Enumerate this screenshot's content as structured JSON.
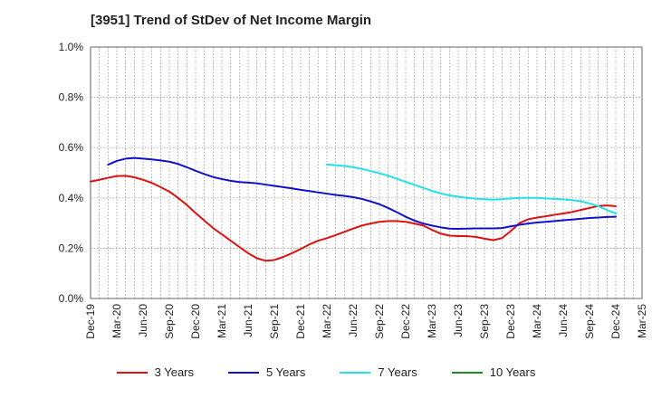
{
  "chart_data": {
    "type": "line",
    "title": "[3951]  Trend of StDev of Net Income Margin",
    "xlabel": "",
    "ylabel": "",
    "ylim": [
      0,
      1.0
    ],
    "y_ticks": [
      "0.0%",
      "0.2%",
      "0.4%",
      "0.6%",
      "0.8%",
      "1.0%"
    ],
    "x_ticks": [
      "Dec-19",
      "Mar-20",
      "Jun-20",
      "Sep-20",
      "Dec-20",
      "Mar-21",
      "Jun-21",
      "Sep-21",
      "Dec-21",
      "Mar-22",
      "Jun-22",
      "Sep-22",
      "Dec-22",
      "Mar-23",
      "Jun-23",
      "Sep-23",
      "Dec-23",
      "Mar-24",
      "Jun-24",
      "Sep-24",
      "Dec-24",
      "Mar-25"
    ],
    "grid": true,
    "legend_position": "bottom",
    "series": [
      {
        "name": "3 Years",
        "color": "#dd1111",
        "points": [
          [
            "Dec-19",
            0.465
          ],
          [
            "Jan-20",
            0.472
          ],
          [
            "Feb-20",
            0.48
          ],
          [
            "Mar-20",
            0.487
          ],
          [
            "Apr-20",
            0.488
          ],
          [
            "May-20",
            0.482
          ],
          [
            "Jun-20",
            0.472
          ],
          [
            "Jul-20",
            0.46
          ],
          [
            "Aug-20",
            0.443
          ],
          [
            "Sep-20",
            0.425
          ],
          [
            "Oct-20",
            0.4
          ],
          [
            "Nov-20",
            0.372
          ],
          [
            "Dec-20",
            0.34
          ],
          [
            "Jan-21",
            0.31
          ],
          [
            "Feb-21",
            0.28
          ],
          [
            "Mar-21",
            0.255
          ],
          [
            "Apr-21",
            0.23
          ],
          [
            "May-21",
            0.205
          ],
          [
            "Jun-21",
            0.18
          ],
          [
            "Jul-21",
            0.16
          ],
          [
            "Aug-21",
            0.15
          ],
          [
            "Sep-21",
            0.153
          ],
          [
            "Oct-21",
            0.165
          ],
          [
            "Nov-21",
            0.18
          ],
          [
            "Dec-21",
            0.197
          ],
          [
            "Jan-22",
            0.215
          ],
          [
            "Feb-22",
            0.23
          ],
          [
            "Mar-22",
            0.24
          ],
          [
            "Apr-22",
            0.252
          ],
          [
            "May-22",
            0.265
          ],
          [
            "Jun-22",
            0.278
          ],
          [
            "Jul-22",
            0.29
          ],
          [
            "Aug-22",
            0.298
          ],
          [
            "Sep-22",
            0.305
          ],
          [
            "Oct-22",
            0.308
          ],
          [
            "Nov-22",
            0.308
          ],
          [
            "Dec-22",
            0.305
          ],
          [
            "Jan-23",
            0.298
          ],
          [
            "Feb-23",
            0.29
          ],
          [
            "Mar-23",
            0.273
          ],
          [
            "Apr-23",
            0.258
          ],
          [
            "May-23",
            0.25
          ],
          [
            "Jun-23",
            0.248
          ],
          [
            "Jul-23",
            0.248
          ],
          [
            "Aug-23",
            0.245
          ],
          [
            "Sep-23",
            0.238
          ],
          [
            "Oct-23",
            0.232
          ],
          [
            "Nov-23",
            0.24
          ],
          [
            "Dec-23",
            0.268
          ],
          [
            "Jan-24",
            0.3
          ],
          [
            "Feb-24",
            0.315
          ],
          [
            "Mar-24",
            0.322
          ],
          [
            "Apr-24",
            0.327
          ],
          [
            "May-24",
            0.333
          ],
          [
            "Jun-24",
            0.338
          ],
          [
            "Jul-24",
            0.344
          ],
          [
            "Aug-24",
            0.352
          ],
          [
            "Sep-24",
            0.36
          ],
          [
            "Oct-24",
            0.368
          ],
          [
            "Nov-24",
            0.37
          ],
          [
            "Dec-24",
            0.367
          ]
        ]
      },
      {
        "name": "5 Years",
        "color": "#1111cc",
        "points": [
          [
            "Feb-20",
            0.532
          ],
          [
            "Mar-20",
            0.547
          ],
          [
            "Apr-20",
            0.556
          ],
          [
            "May-20",
            0.559
          ],
          [
            "Jun-20",
            0.556
          ],
          [
            "Jul-20",
            0.553
          ],
          [
            "Aug-20",
            0.549
          ],
          [
            "Sep-20",
            0.544
          ],
          [
            "Oct-20",
            0.535
          ],
          [
            "Nov-20",
            0.522
          ],
          [
            "Dec-20",
            0.508
          ],
          [
            "Jan-21",
            0.495
          ],
          [
            "Feb-21",
            0.483
          ],
          [
            "Mar-21",
            0.475
          ],
          [
            "Apr-21",
            0.468
          ],
          [
            "May-21",
            0.463
          ],
          [
            "Jun-21",
            0.461
          ],
          [
            "Jul-21",
            0.458
          ],
          [
            "Aug-21",
            0.453
          ],
          [
            "Sep-21",
            0.448
          ],
          [
            "Oct-21",
            0.443
          ],
          [
            "Nov-21",
            0.438
          ],
          [
            "Dec-21",
            0.432
          ],
          [
            "Jan-22",
            0.427
          ],
          [
            "Feb-22",
            0.422
          ],
          [
            "Mar-22",
            0.417
          ],
          [
            "Apr-22",
            0.412
          ],
          [
            "May-22",
            0.408
          ],
          [
            "Jun-22",
            0.403
          ],
          [
            "Jul-22",
            0.396
          ],
          [
            "Aug-22",
            0.386
          ],
          [
            "Sep-22",
            0.375
          ],
          [
            "Oct-22",
            0.36
          ],
          [
            "Nov-22",
            0.343
          ],
          [
            "Dec-22",
            0.325
          ],
          [
            "Jan-23",
            0.31
          ],
          [
            "Feb-23",
            0.298
          ],
          [
            "Mar-23",
            0.29
          ],
          [
            "Apr-23",
            0.283
          ],
          [
            "May-23",
            0.278
          ],
          [
            "Jun-23",
            0.277
          ],
          [
            "Jul-23",
            0.278
          ],
          [
            "Aug-23",
            0.279
          ],
          [
            "Sep-23",
            0.279
          ],
          [
            "Oct-23",
            0.279
          ],
          [
            "Nov-23",
            0.28
          ],
          [
            "Dec-23",
            0.287
          ],
          [
            "Jan-24",
            0.293
          ],
          [
            "Feb-24",
            0.298
          ],
          [
            "Mar-24",
            0.302
          ],
          [
            "Apr-24",
            0.305
          ],
          [
            "May-24",
            0.308
          ],
          [
            "Jun-24",
            0.311
          ],
          [
            "Jul-24",
            0.314
          ],
          [
            "Aug-24",
            0.317
          ],
          [
            "Sep-24",
            0.32
          ],
          [
            "Oct-24",
            0.322
          ],
          [
            "Nov-24",
            0.324
          ],
          [
            "Dec-24",
            0.325
          ]
        ]
      },
      {
        "name": "7 Years",
        "color": "#22e0e6",
        "points": [
          [
            "Mar-22",
            0.533
          ],
          [
            "Apr-22",
            0.53
          ],
          [
            "May-22",
            0.527
          ],
          [
            "Jun-22",
            0.522
          ],
          [
            "Jul-22",
            0.515
          ],
          [
            "Aug-22",
            0.507
          ],
          [
            "Sep-22",
            0.498
          ],
          [
            "Oct-22",
            0.488
          ],
          [
            "Nov-22",
            0.476
          ],
          [
            "Dec-22",
            0.464
          ],
          [
            "Jan-23",
            0.452
          ],
          [
            "Feb-23",
            0.44
          ],
          [
            "Mar-23",
            0.428
          ],
          [
            "Apr-23",
            0.418
          ],
          [
            "May-23",
            0.41
          ],
          [
            "Jun-23",
            0.405
          ],
          [
            "Jul-23",
            0.4
          ],
          [
            "Aug-23",
            0.397
          ],
          [
            "Sep-23",
            0.395
          ],
          [
            "Oct-23",
            0.393
          ],
          [
            "Nov-23",
            0.395
          ],
          [
            "Dec-23",
            0.398
          ],
          [
            "Jan-24",
            0.4
          ],
          [
            "Feb-24",
            0.4
          ],
          [
            "Mar-24",
            0.4
          ],
          [
            "Apr-24",
            0.398
          ],
          [
            "May-24",
            0.396
          ],
          [
            "Jun-24",
            0.394
          ],
          [
            "Jul-24",
            0.391
          ],
          [
            "Aug-24",
            0.387
          ],
          [
            "Sep-24",
            0.378
          ],
          [
            "Oct-24",
            0.367
          ],
          [
            "Nov-24",
            0.352
          ],
          [
            "Dec-24",
            0.338
          ]
        ]
      },
      {
        "name": "10 Years",
        "color": "#228822",
        "points": []
      }
    ]
  }
}
